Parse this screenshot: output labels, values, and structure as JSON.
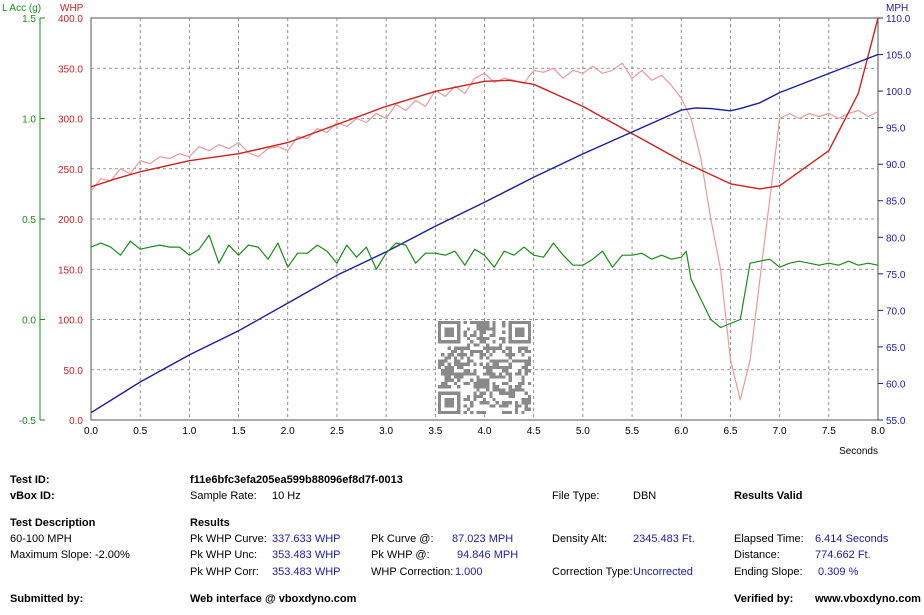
{
  "chart_data": {
    "type": "line",
    "xlabel": "Seconds",
    "xlim": [
      0,
      8
    ],
    "xticks": [
      "0.0",
      "0.5",
      "1.0",
      "1.5",
      "2.0",
      "2.5",
      "3.0",
      "3.5",
      "4.0",
      "4.5",
      "5.0",
      "5.5",
      "6.0",
      "6.5",
      "7.0",
      "7.5",
      "8.0"
    ],
    "axes": {
      "lacc": {
        "label": "L Acc (g)",
        "color": "#1b8a1b",
        "range": [
          -0.5,
          1.5
        ],
        "ticks": [
          "-0.5",
          "0.0",
          "0.5",
          "1.0",
          "1.5"
        ]
      },
      "whp": {
        "label": "WHP",
        "color": "#cc2222",
        "range": [
          0,
          400
        ],
        "ticks": [
          "0.0",
          "50.0",
          "100.0",
          "150.0",
          "200.0",
          "250.0",
          "300.0",
          "350.0",
          "400.0"
        ]
      },
      "mph": {
        "label": "MPH",
        "color": "#1c1ca0",
        "range": [
          55,
          110
        ],
        "ticks": [
          "55.0",
          "60.0",
          "65.0",
          "70.0",
          "75.0",
          "80.0",
          "85.0",
          "90.0",
          "95.0",
          "100.0",
          "105.0",
          "110.0"
        ]
      }
    },
    "series": [
      {
        "axis": "whp",
        "color": "#ea9a9a",
        "width": 1.2,
        "x": [
          0,
          0.1,
          0.2,
          0.3,
          0.4,
          0.5,
          0.6,
          0.7,
          0.8,
          0.9,
          1.0,
          1.1,
          1.2,
          1.3,
          1.4,
          1.5,
          1.6,
          1.7,
          1.8,
          1.9,
          2.0,
          2.1,
          2.2,
          2.3,
          2.4,
          2.5,
          2.6,
          2.7,
          2.8,
          2.9,
          3.0,
          3.1,
          3.2,
          3.3,
          3.4,
          3.5,
          3.6,
          3.7,
          3.8,
          3.9,
          4.0,
          4.1,
          4.2,
          4.3,
          4.4,
          4.5,
          4.6,
          4.7,
          4.8,
          4.9,
          5.0,
          5.1,
          5.2,
          5.3,
          5.4,
          5.5,
          5.6,
          5.7,
          5.8,
          5.9,
          6.0,
          6.1,
          6.2,
          6.3,
          6.4,
          6.5,
          6.6,
          6.7,
          6.8,
          6.9,
          7.0,
          7.1,
          7.2,
          7.3,
          7.4,
          7.5,
          7.6,
          7.7,
          7.8,
          7.9,
          8.0
        ],
        "y": [
          228,
          240,
          238,
          250,
          245,
          258,
          255,
          262,
          260,
          265,
          262,
          272,
          268,
          274,
          270,
          276,
          266,
          262,
          270,
          272,
          268,
          282,
          280,
          290,
          286,
          296,
          292,
          300,
          296,
          305,
          300,
          314,
          308,
          318,
          312,
          328,
          322,
          332,
          325,
          340,
          345,
          336,
          340,
          338,
          335,
          348,
          346,
          350,
          340,
          348,
          345,
          352,
          345,
          348,
          355,
          340,
          348,
          338,
          343,
          333,
          320,
          300,
          260,
          200,
          150,
          60,
          20,
          60,
          140,
          220,
          300,
          305,
          300,
          305,
          302,
          305,
          300,
          305,
          308,
          302,
          307
        ]
      },
      {
        "axis": "whp",
        "color": "#cc2222",
        "width": 1.4,
        "x": [
          0,
          0.25,
          0.5,
          1.0,
          1.5,
          2.0,
          2.5,
          3.0,
          3.5,
          4.0,
          4.25,
          4.5,
          5.0,
          5.5,
          6.0,
          6.5,
          6.8,
          7.0,
          7.5,
          7.8,
          8.0
        ],
        "y": [
          232,
          240,
          247,
          258,
          265,
          276,
          294,
          312,
          327,
          337,
          338,
          334,
          312,
          285,
          258,
          235,
          230,
          233,
          268,
          325,
          400
        ]
      },
      {
        "axis": "mph",
        "color": "#1c1ca0",
        "width": 1.4,
        "x": [
          0,
          0.5,
          1.0,
          1.5,
          2.0,
          2.5,
          3.0,
          3.5,
          4.0,
          4.5,
          5.0,
          5.5,
          6.0,
          6.15,
          6.3,
          6.5,
          6.6,
          6.8,
          7.0,
          7.5,
          8.0
        ],
        "y": [
          56.0,
          60.2,
          63.9,
          67.2,
          71.0,
          74.8,
          78.0,
          81.5,
          84.8,
          88.2,
          91.4,
          94.4,
          97.4,
          97.7,
          97.6,
          97.3,
          97.6,
          98.4,
          99.8,
          102.4,
          105.0
        ]
      },
      {
        "axis": "lacc",
        "color": "#1b8a1b",
        "width": 1.2,
        "x": [
          0,
          0.1,
          0.2,
          0.3,
          0.4,
          0.5,
          0.6,
          0.7,
          0.8,
          0.9,
          1.0,
          1.1,
          1.2,
          1.3,
          1.4,
          1.5,
          1.6,
          1.7,
          1.8,
          1.9,
          2.0,
          2.1,
          2.2,
          2.3,
          2.4,
          2.5,
          2.6,
          2.7,
          2.8,
          2.9,
          3.0,
          3.1,
          3.2,
          3.3,
          3.4,
          3.5,
          3.6,
          3.7,
          3.8,
          3.9,
          4.0,
          4.1,
          4.2,
          4.3,
          4.4,
          4.5,
          4.6,
          4.7,
          4.8,
          4.9,
          5.0,
          5.1,
          5.2,
          5.3,
          5.4,
          5.5,
          5.6,
          5.7,
          5.8,
          5.9,
          6.0,
          6.05,
          6.1,
          6.2,
          6.3,
          6.4,
          6.5,
          6.6,
          6.7,
          6.8,
          6.9,
          7.0,
          7.1,
          7.2,
          7.3,
          7.4,
          7.5,
          7.6,
          7.7,
          7.8,
          7.9,
          8.0
        ],
        "y": [
          0.36,
          0.38,
          0.36,
          0.32,
          0.39,
          0.35,
          0.36,
          0.37,
          0.36,
          0.36,
          0.32,
          0.35,
          0.42,
          0.28,
          0.37,
          0.32,
          0.37,
          0.36,
          0.3,
          0.38,
          0.26,
          0.33,
          0.33,
          0.37,
          0.34,
          0.28,
          0.37,
          0.31,
          0.36,
          0.25,
          0.33,
          0.38,
          0.37,
          0.28,
          0.33,
          0.33,
          0.32,
          0.34,
          0.27,
          0.35,
          0.32,
          0.26,
          0.34,
          0.32,
          0.36,
          0.32,
          0.31,
          0.38,
          0.32,
          0.27,
          0.27,
          0.3,
          0.34,
          0.26,
          0.32,
          0.32,
          0.33,
          0.3,
          0.32,
          0.3,
          0.31,
          0.34,
          0.2,
          0.1,
          0.0,
          -0.04,
          -0.02,
          0.0,
          0.28,
          0.29,
          0.3,
          0.26,
          0.28,
          0.29,
          0.28,
          0.27,
          0.28,
          0.27,
          0.29,
          0.27,
          0.28,
          0.27
        ]
      }
    ]
  },
  "info": {
    "test_id_label": "Test ID:",
    "test_id_value": "f11e6bfc3efa205ea599b88096ef8d7f-0013",
    "vbox_id_label": "vBox ID:",
    "sample_rate_label": "Sample Rate:",
    "sample_rate_value": "10 Hz",
    "file_type_label": "File Type:",
    "file_type_value": "DBN",
    "results_valid": "Results Valid",
    "test_desc_label": "Test Description",
    "test_desc_value": "60-100 MPH",
    "max_slope": "Maximum Slope:  -2.00%",
    "results_label": "Results",
    "pk_whp_curve_label": "Pk WHP Curve:",
    "pk_whp_curve_value": "337.633 WHP",
    "pk_whp_unc_label": "Pk WHP Unc:",
    "pk_whp_unc_value": "353.483 WHP",
    "pk_whp_corr_label": "Pk WHP Corr:",
    "pk_whp_corr_value": "353.483 WHP",
    "pk_curve_at_label": "Pk Curve @:",
    "pk_curve_at_value": "87.023 MPH",
    "pk_whp_at_label": "Pk WHP @:",
    "pk_whp_at_value": "94.846 MPH",
    "whp_correction_label": "WHP Correction:",
    "whp_correction_value": "1.000",
    "density_alt_label": "Density Alt:",
    "density_alt_value": "2345.483 Ft.",
    "correction_type_label": "Correction Type:",
    "correction_type_value": "Uncorrected",
    "elapsed_time_label": "Elapsed Time:",
    "elapsed_time_value": "6.414 Seconds",
    "distance_label": "Distance:",
    "distance_value": "774.662 Ft.",
    "ending_slope_label": "Ending Slope:",
    "ending_slope_value": "0.309 %",
    "submitted_by_label": "Submitted by:",
    "web_interface": "Web interface @ vboxdyno.com",
    "verified_by_label": "Verified by:",
    "verified_by_value": "www.vboxdyno.com"
  }
}
